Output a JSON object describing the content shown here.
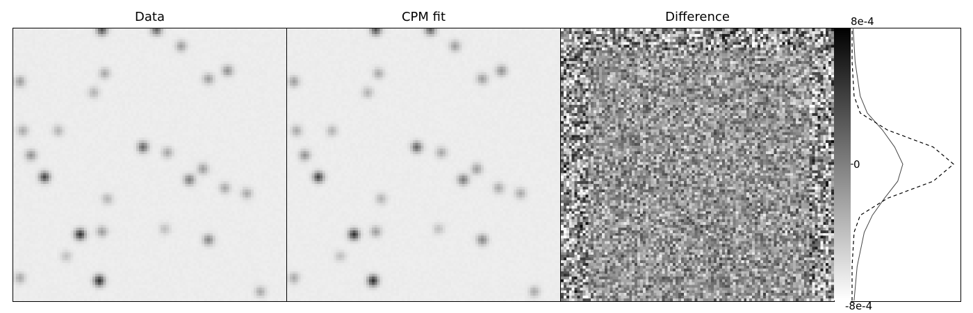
{
  "chart_data": [
    {
      "type": "heatmap",
      "title": "Data",
      "colormap": "gray_r",
      "description_values": "stellar field image, white background with scattered dark point sources",
      "sources": [
        [
          0.32,
          0.0,
          0.7
        ],
        [
          0.52,
          0.0,
          0.6
        ],
        [
          0.61,
          0.06,
          0.35
        ],
        [
          0.78,
          0.15,
          0.4
        ],
        [
          0.71,
          0.18,
          0.35
        ],
        [
          0.02,
          0.19,
          0.35
        ],
        [
          0.33,
          0.16,
          0.3
        ],
        [
          0.29,
          0.23,
          0.25
        ],
        [
          0.03,
          0.37,
          0.3
        ],
        [
          0.16,
          0.37,
          0.25
        ],
        [
          0.06,
          0.46,
          0.4
        ],
        [
          0.47,
          0.43,
          0.6
        ],
        [
          0.56,
          0.45,
          0.3
        ],
        [
          0.11,
          0.54,
          0.75
        ],
        [
          0.64,
          0.55,
          0.5
        ],
        [
          0.69,
          0.51,
          0.35
        ],
        [
          0.77,
          0.58,
          0.3
        ],
        [
          0.85,
          0.6,
          0.3
        ],
        [
          0.34,
          0.62,
          0.25
        ],
        [
          0.24,
          0.75,
          0.85
        ],
        [
          0.32,
          0.74,
          0.35
        ],
        [
          0.71,
          0.77,
          0.45
        ],
        [
          0.31,
          0.92,
          0.85
        ],
        [
          0.02,
          0.91,
          0.3
        ],
        [
          0.9,
          0.96,
          0.3
        ],
        [
          0.55,
          0.73,
          0.2
        ],
        [
          0.19,
          0.83,
          0.2
        ]
      ]
    },
    {
      "type": "heatmap",
      "title": "CPM fit",
      "colormap": "gray_r"
    },
    {
      "type": "heatmap",
      "title": "Difference",
      "colormap": "gray_r",
      "colorbar": {
        "max_label": "8e-4",
        "mid_label": "0",
        "min_label": "-8e-4",
        "range": [
          -0.0008,
          0.0008
        ]
      }
    },
    {
      "type": "line",
      "title": "",
      "orientation": "horizontal histogram",
      "series": [
        {
          "style": "solid"
        },
        {
          "style": "dashed"
        }
      ],
      "y": [
        -0.0008,
        -0.0006,
        -0.0004,
        -0.0003,
        -0.0002,
        -0.0001,
        0.0,
        0.0001,
        0.0002,
        0.0003,
        0.0004,
        0.0006,
        0.0008
      ],
      "hist_counts_relative": [
        0.02,
        0.05,
        0.12,
        0.2,
        0.32,
        0.45,
        0.5,
        0.42,
        0.3,
        0.15,
        0.08,
        0.03,
        0.01
      ],
      "gauss_relative": [
        0.0,
        0.0,
        0.02,
        0.08,
        0.35,
        0.8,
        1.0,
        0.8,
        0.35,
        0.08,
        0.02,
        0.0,
        0.0
      ]
    }
  ],
  "titles": {
    "data": "Data",
    "fit": "CPM fit",
    "diff": "Difference"
  },
  "colorbar": {
    "max": "8e-4",
    "mid": "0",
    "min": "-8e-4"
  }
}
